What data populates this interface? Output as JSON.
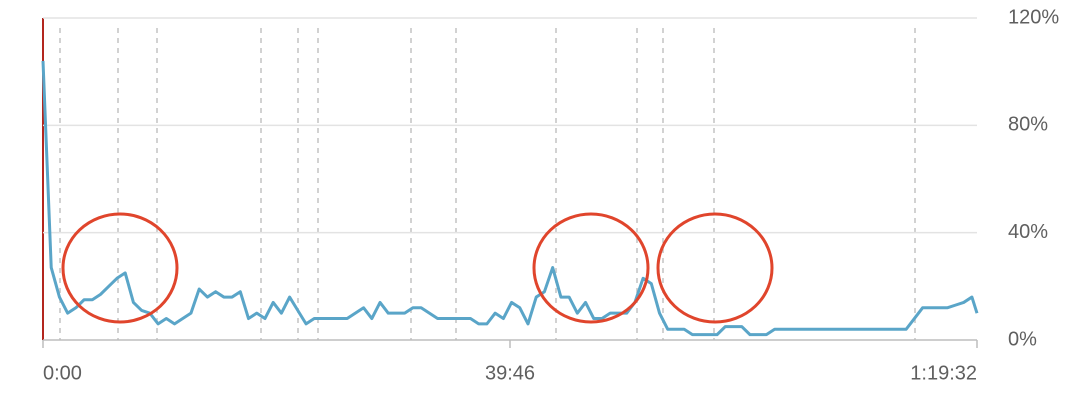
{
  "chart_data": {
    "type": "line",
    "x": [
      0,
      42,
      84,
      126,
      168,
      210,
      252,
      294,
      336,
      378,
      420,
      462,
      504,
      546,
      588,
      630,
      672,
      714,
      756,
      798,
      840,
      882,
      924,
      966,
      1008,
      1050,
      1092,
      1134,
      1176,
      1218,
      1260,
      1302,
      1344,
      1386,
      1428,
      1470,
      1512,
      1554,
      1596,
      1638,
      1680,
      1722,
      1764,
      1806,
      1848,
      1890,
      1932,
      1974,
      2016,
      2058,
      2100,
      2142,
      2184,
      2226,
      2268,
      2310,
      2352,
      2394,
      2436,
      2478,
      2520,
      2562,
      2604,
      2646,
      2688,
      2730,
      2772,
      2814,
      2856,
      2898,
      2940,
      2982,
      3024,
      3066,
      3108,
      3150,
      3192,
      3234,
      3276,
      3318,
      3360,
      3402,
      3444,
      3486,
      3528,
      3570,
      3612,
      3654,
      3696,
      3738,
      3780,
      3822,
      3864,
      3906,
      3948,
      3990,
      4032,
      4074,
      4116,
      4158,
      4200,
      4242,
      4284,
      4326,
      4368,
      4410,
      4452,
      4494,
      4536,
      4578,
      4620,
      4662,
      4704,
      4746,
      4772
    ],
    "series": [
      {
        "color": "#5aa5c8",
        "values": [
          104,
          27,
          16,
          10,
          12,
          15,
          15,
          17,
          20,
          23,
          25,
          14,
          11,
          10,
          6,
          8,
          6,
          8,
          10,
          19,
          16,
          18,
          16,
          16,
          18,
          8,
          10,
          8,
          14,
          10,
          16,
          11,
          6,
          8,
          8,
          8,
          8,
          8,
          10,
          12,
          8,
          14,
          10,
          10,
          10,
          12,
          12,
          10,
          8,
          8,
          8,
          8,
          8,
          6,
          6,
          10,
          8,
          14,
          12,
          6,
          16,
          18,
          27,
          16,
          16,
          10,
          14,
          8,
          8,
          10,
          10,
          10,
          14,
          23,
          21,
          10,
          4,
          4,
          4,
          2,
          2,
          2,
          2,
          5,
          5,
          5,
          2,
          2,
          2,
          4,
          4,
          4,
          4,
          4,
          4,
          4,
          4,
          4,
          4,
          4,
          4,
          4,
          4,
          4,
          4,
          4,
          8,
          12,
          12,
          12,
          12,
          13,
          14,
          16,
          10
        ]
      }
    ],
    "xlim": [
      0,
      4772
    ],
    "xticks": [
      {
        "value": 0,
        "label": "0:00"
      },
      {
        "value": 2386,
        "label": "39:46"
      },
      {
        "value": 4772,
        "label": "1:19:32"
      }
    ],
    "ylim": [
      0,
      120
    ],
    "yticks": [
      {
        "value": 0,
        "label": "0%"
      },
      {
        "value": 40,
        "label": "40%"
      },
      {
        "value": 80,
        "label": "80%"
      },
      {
        "value": 120,
        "label": "120%"
      }
    ],
    "grid": true
  }
}
